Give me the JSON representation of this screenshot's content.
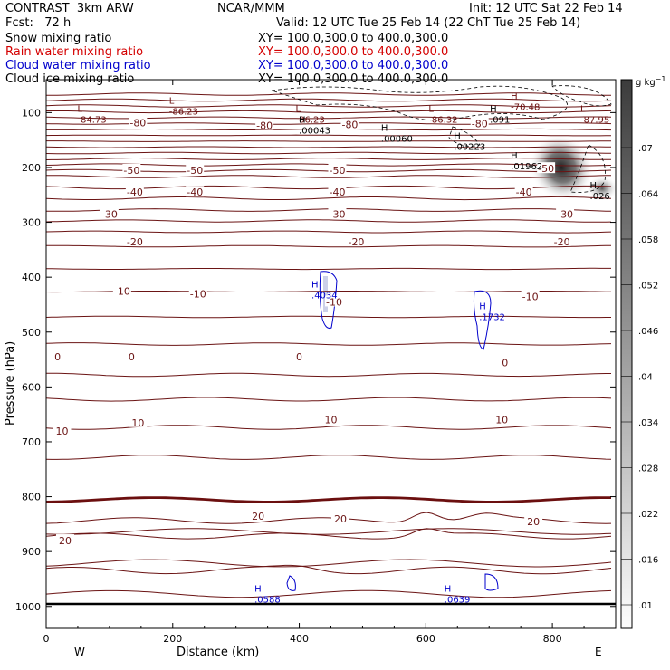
{
  "header": {
    "model": "CONTRAST  3km ARW",
    "center": "NCAR/MMM",
    "init": "Init: 12 UTC Sat 22 Feb 14",
    "fcst": "Fcst:   72 h",
    "valid": "Valid: 12 UTC Tue 25 Feb 14 (22 ChT Tue 25 Feb 14)"
  },
  "fields": [
    {
      "name": "Snow mixing ratio",
      "xy": "XY= 100.0,300.0 to 400.0,300.0",
      "color": "#000000"
    },
    {
      "name": "Rain water mixing ratio",
      "xy": "XY= 100.0,300.0 to 400.0,300.0",
      "color": "#d40000"
    },
    {
      "name": "Cloud water mixing ratio",
      "xy": "XY= 100.0,300.0 to 400.0,300.0",
      "color": "#0000cc"
    },
    {
      "name": "Cloud ice mixing ratio",
      "xy": "XY= 100.0,300.0 to 400.0,300.0",
      "color": "#000000"
    }
  ],
  "chart_data": {
    "type": "contour-cross-section",
    "xlabel": "Distance (km)",
    "ylabel": "Pressure (hPa)",
    "xlim": [
      0,
      900
    ],
    "ylim": [
      1040,
      40
    ],
    "x_ticks": [
      "0",
      "200",
      "400",
      "600",
      "800"
    ],
    "x_tick_values": [
      0,
      200,
      400,
      600,
      800
    ],
    "y_ticks": [
      "100",
      "200",
      "300",
      "400",
      "500",
      "600",
      "700",
      "800",
      "900",
      "1000"
    ],
    "y_tick_values": [
      100,
      200,
      300,
      400,
      500,
      600,
      700,
      800,
      900,
      1000
    ],
    "end_labels": {
      "west": "W",
      "east": "E"
    },
    "colorbar": {
      "unit": "g kg",
      "unit_exp": "−1",
      "labels": [
        ".01",
        ".016",
        ".022",
        ".028",
        ".034",
        ".04",
        ".046",
        ".052",
        ".058",
        ".064",
        ".07"
      ],
      "values": [
        0.01,
        0.016,
        0.022,
        0.028,
        0.034,
        0.04,
        0.046,
        0.052,
        0.058,
        0.064,
        0.07
      ]
    },
    "temperature_labels": [
      {
        "text": "-80",
        "x": 145,
        "p": 118
      },
      {
        "text": "-80",
        "x": 345,
        "p": 123
      },
      {
        "text": "-80",
        "x": 480,
        "p": 122
      },
      {
        "text": "-80",
        "x": 685,
        "p": 120
      },
      {
        "text": "-50",
        "x": 135,
        "p": 205
      },
      {
        "text": "-50",
        "x": 235,
        "p": 205
      },
      {
        "text": "-50",
        "x": 460,
        "p": 205
      },
      {
        "text": "-50",
        "x": 790,
        "p": 202
      },
      {
        "text": "-40",
        "x": 140,
        "p": 245
      },
      {
        "text": "-40",
        "x": 235,
        "p": 245
      },
      {
        "text": "-40",
        "x": 460,
        "p": 245
      },
      {
        "text": "-40",
        "x": 755,
        "p": 245
      },
      {
        "text": "-30",
        "x": 100,
        "p": 285
      },
      {
        "text": "-30",
        "x": 460,
        "p": 285
      },
      {
        "text": "-30",
        "x": 820,
        "p": 285
      },
      {
        "text": "-20",
        "x": 140,
        "p": 335
      },
      {
        "text": "-20",
        "x": 490,
        "p": 335
      },
      {
        "text": "-20",
        "x": 815,
        "p": 335
      },
      {
        "text": "-10",
        "x": 120,
        "p": 425
      },
      {
        "text": "-10",
        "x": 240,
        "p": 430
      },
      {
        "text": "-10",
        "x": 455,
        "p": 445
      },
      {
        "text": "-10",
        "x": 765,
        "p": 435
      },
      {
        "text": "0",
        "x": 18,
        "p": 545
      },
      {
        "text": "0",
        "x": 135,
        "p": 545
      },
      {
        "text": "0",
        "x": 400,
        "p": 545
      },
      {
        "text": "0",
        "x": 725,
        "p": 556
      },
      {
        "text": "10",
        "x": 145,
        "p": 665
      },
      {
        "text": "10",
        "x": 25,
        "p": 680
      },
      {
        "text": "10",
        "x": 450,
        "p": 660
      },
      {
        "text": "10",
        "x": 720,
        "p": 660
      },
      {
        "text": "20",
        "x": 335,
        "p": 835
      },
      {
        "text": "20",
        "x": 465,
        "p": 840
      },
      {
        "text": "20",
        "x": 30,
        "p": 880
      },
      {
        "text": "20",
        "x": 770,
        "p": 845
      }
    ],
    "extrema_labels": [
      {
        "kind": "L",
        "value": "-84.73",
        "x": 55,
        "p": 105,
        "color": "#6b0f0f"
      },
      {
        "kind": "L",
        "value": "-86.23",
        "x": 200,
        "p": 90,
        "color": "#6b0f0f"
      },
      {
        "kind": "L",
        "value": "-86.23",
        "x": 400,
        "p": 105,
        "color": "#6b0f0f"
      },
      {
        "kind": "L",
        "value": "-86.32",
        "x": 610,
        "p": 105,
        "color": "#6b0f0f"
      },
      {
        "kind": "H",
        "value": "-70.48",
        "x": 740,
        "p": 82,
        "color": "#6b0f0f"
      },
      {
        "kind": "L",
        "value": "-87.95",
        "x": 850,
        "p": 105,
        "color": "#6b0f0f"
      },
      {
        "kind": "H",
        "value": ".00043",
        "x": 405,
        "p": 125,
        "color": "#000000"
      },
      {
        "kind": "H",
        "value": ".00060",
        "x": 535,
        "p": 140,
        "color": "#000000"
      },
      {
        "kind": "H",
        "value": ".00223",
        "x": 650,
        "p": 155,
        "color": "#000000"
      },
      {
        "kind": "H",
        "value": ".091",
        "x": 707,
        "p": 105,
        "color": "#000000"
      },
      {
        "kind": "H",
        "value": ".01962",
        "x": 740,
        "p": 190,
        "color": "#000000"
      },
      {
        "kind": "H",
        "value": ".026",
        "x": 865,
        "p": 245,
        "color": "#000000"
      },
      {
        "kind": "H",
        "value": ".4034",
        "x": 425,
        "p": 425,
        "color": "#0000cc"
      },
      {
        "kind": "H",
        "value": ".1732",
        "x": 690,
        "p": 465,
        "color": "#0000cc"
      },
      {
        "kind": "H",
        "value": ".0588",
        "x": 335,
        "p": 980,
        "color": "#0000cc"
      },
      {
        "kind": "H",
        "value": ".0639",
        "x": 635,
        "p": 980,
        "color": "#0000cc"
      }
    ]
  }
}
